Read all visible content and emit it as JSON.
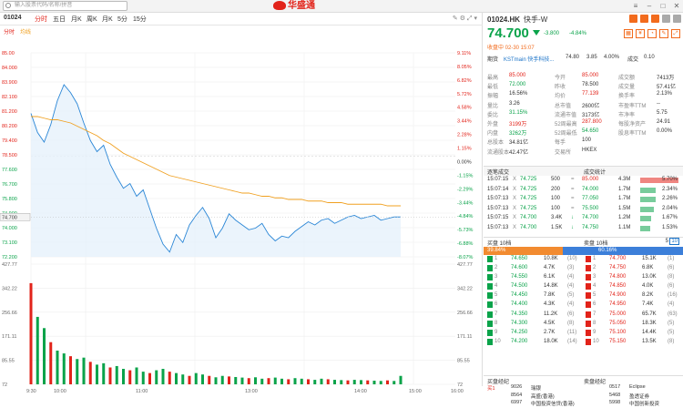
{
  "topbar": {
    "search_placeholder": "输入股票代码/名称/拼音",
    "logo": "华盛通"
  },
  "chart": {
    "code": "01024",
    "tabs": [
      "分时",
      "五日",
      "月K",
      "周K",
      "月K",
      "5分",
      "15分"
    ],
    "active_tab": "分时",
    "subtabs": [
      "分时",
      "均线"
    ],
    "price_ticks": [
      "85.00",
      "84.000",
      "83.900",
      "82.100",
      "81.200",
      "80.200",
      "79.400",
      "78.500",
      "77.600",
      "76.700",
      "75.800",
      "74.900",
      "74.000",
      "73.100",
      "72.200"
    ],
    "pct_ticks": [
      "9.11%",
      "8.05%",
      "6.82%",
      "5.72%",
      "4.58%",
      "3.44%",
      "2.28%",
      "1.15%",
      "0.00%",
      "-1.15%",
      "-2.29%",
      "-3.44%",
      "-4.84%",
      "-5.73%",
      "-6.88%",
      "-8.07%"
    ],
    "vol_ticks": [
      "427.77",
      "342.22",
      "256.66",
      "171.11",
      "85.55",
      "72"
    ],
    "vol_ticks_right": [
      "427.77",
      "342.22",
      "256.66",
      "171.11",
      "85.55",
      "72"
    ],
    "time_ticks": [
      "9:30",
      "10:00",
      "11:00",
      "13:00",
      "14:00",
      "15:00",
      "16:00"
    ]
  },
  "chart_data": {
    "type": "line",
    "title": "",
    "xlabel": "",
    "ylabel": "",
    "ylim": [
      72.2,
      85.0
    ],
    "series": [
      {
        "name": "",
        "values": [
          81.2,
          80.0,
          79.4,
          80.5,
          82.0,
          83.0,
          82.5,
          81.8,
          80.6,
          79.5,
          78.8,
          79.2,
          78.0,
          77.2,
          76.5,
          76.8,
          76.0,
          76.4,
          75.2,
          74.0,
          73.0,
          72.5,
          73.6,
          73.1,
          74.2,
          74.8,
          75.3,
          74.6,
          73.4,
          74.0,
          74.9,
          74.5,
          74.2,
          73.9,
          74.0,
          74.3,
          73.6,
          73.2,
          73.5,
          73.4,
          73.8,
          74.1,
          74.4,
          74.2,
          74.5,
          74.6,
          74.3,
          74.5,
          74.7,
          74.8,
          74.6,
          74.7,
          74.8,
          74.5,
          74.6,
          74.7,
          74.7
        ]
      },
      {
        "name": "",
        "values": [
          81.0,
          81.0,
          80.9,
          80.8,
          80.8,
          80.7,
          80.6,
          80.4,
          80.2,
          80.0,
          79.8,
          79.5,
          79.3,
          79.0,
          78.7,
          78.5,
          78.3,
          78.1,
          77.9,
          77.7,
          77.5,
          77.3,
          77.2,
          77.1,
          77.0,
          76.9,
          76.8,
          76.7,
          76.6,
          76.5,
          76.4,
          76.3,
          76.2,
          76.2,
          76.1,
          76.0,
          76.0,
          75.9,
          75.9,
          75.8,
          75.8,
          75.8,
          75.7,
          75.7,
          75.7,
          75.6,
          75.6,
          75.6,
          75.5,
          75.5,
          75.5,
          75.5,
          75.5,
          75.5,
          75.4,
          75.4,
          75.4
        ]
      }
    ],
    "volume": [
      360,
      240,
      200,
      150,
      120,
      110,
      100,
      90,
      95,
      80,
      70,
      75,
      60,
      65,
      55,
      50,
      60,
      45,
      40,
      50,
      55,
      45,
      40,
      35,
      30,
      40,
      35,
      30,
      25,
      30,
      28,
      26,
      24,
      22,
      25,
      20,
      22,
      24,
      20,
      18,
      22,
      20,
      18,
      16,
      20,
      18,
      16,
      15,
      14,
      16,
      15,
      14,
      13,
      12,
      14,
      12,
      30
    ]
  },
  "quote": {
    "code": "01024.HK",
    "name": "快手-W",
    "price": "74.700",
    "change": "-3.800",
    "change_pct": "-4.84%",
    "status": "收盘中 02-30 15:07",
    "pre_market": {
      "label": "期货",
      "source": "KSTmain 快手科技...",
      "value": "74.80",
      "chg": "3.85",
      "pct": "4.00%",
      "amt_label": "成交",
      "amt": "0.10"
    },
    "rows": [
      [
        [
          "最高",
          "85.000",
          "red"
        ],
        [
          "今开",
          "85.000",
          "red"
        ],
        [
          "成交额",
          "7413万",
          "blk"
        ]
      ],
      [
        [
          "最低",
          "72.000",
          "grn"
        ],
        [
          "昨收",
          "78.500",
          "blk"
        ],
        [
          "成交量",
          "57.41亿",
          "blk"
        ]
      ],
      [
        [
          "振幅",
          "16.56%",
          "blk"
        ],
        [
          "均价",
          "77.139",
          "red"
        ],
        [
          "换手率",
          "2.13%",
          "blk"
        ]
      ],
      [
        [
          "量比",
          "3.26",
          "blk"
        ],
        [
          "总市值",
          "2600亿",
          "blk"
        ],
        [
          "市盈率TTM",
          "--",
          "blk"
        ]
      ],
      [
        [
          "委比",
          "31.15%",
          "grn"
        ],
        [
          "流通市值",
          "3173亿",
          "blk"
        ],
        [
          "市净率",
          "5.75",
          "blk"
        ]
      ],
      [
        [
          "外盘",
          "3199万",
          "red"
        ],
        [
          "52周最高",
          "287.800",
          "red"
        ],
        [
          "每股净资产",
          "24.91",
          "blk"
        ]
      ],
      [
        [
          "内盘",
          "3262万",
          "grn"
        ],
        [
          "52周最低",
          "54.650",
          "grn"
        ],
        [
          "股息率TTM",
          "0.00%",
          "blk"
        ]
      ],
      [
        [
          "总股本",
          "34.81亿",
          "blk"
        ],
        [
          "每手",
          "100",
          "blk"
        ],
        [
          "",
          "",
          ""
        ]
      ],
      [
        [
          "流通股本",
          "42.47亿",
          "blk"
        ],
        [
          "交易所",
          "HKEX",
          "blk"
        ],
        [
          "",
          "",
          ""
        ]
      ]
    ]
  },
  "ticks": {
    "header_left": "逐笔成交",
    "header_right": "成交统计",
    "rows": [
      [
        "15:07:15",
        "X",
        "74.725",
        "500",
        "="
      ],
      [
        "15:07:14",
        "X",
        "74.725",
        "200",
        "="
      ],
      [
        "15:07:13",
        "X",
        "74.725",
        "100",
        "="
      ],
      [
        "15:07:13",
        "X",
        "74.725",
        "100",
        "="
      ],
      [
        "15:07:15",
        "X",
        "74.700",
        "3.4K",
        "↓"
      ],
      [
        "15:07:13",
        "X",
        "74.700",
        "1.5K",
        "↓"
      ]
    ],
    "stats": [
      [
        "85.000",
        "4.3M",
        "5.70%"
      ],
      [
        "74.000",
        "1.7M",
        "2.34%"
      ],
      [
        "77.050",
        "1.7M",
        "2.26%"
      ],
      [
        "75.500",
        "1.5M",
        "2.04%"
      ],
      [
        "74.700",
        "1.2M",
        "1.67%"
      ],
      [
        "74.750",
        "1.1M",
        "1.53%"
      ]
    ]
  },
  "depth": {
    "bid_label": "买盘 10档",
    "ask_label": "卖盘 10档",
    "bid_ratio": "39.84%",
    "ask_ratio": "60.16%",
    "rows": [
      [
        "1",
        "74.650",
        "10.8K",
        "(10)",
        "1",
        "74.700",
        "15.1K",
        "(1)"
      ],
      [
        "2",
        "74.600",
        "4.7K",
        "(3)",
        "2",
        "74.750",
        "6.8K",
        "(6)"
      ],
      [
        "3",
        "74.550",
        "6.1K",
        "(4)",
        "3",
        "74.800",
        "13.0K",
        "(8)"
      ],
      [
        "4",
        "74.500",
        "14.8K",
        "(4)",
        "4",
        "74.850",
        "4.0K",
        "(6)"
      ],
      [
        "5",
        "74.450",
        "7.8K",
        "(5)",
        "5",
        "74.900",
        "8.2K",
        "(16)"
      ],
      [
        "6",
        "74.400",
        "4.3K",
        "(4)",
        "6",
        "74.950",
        "7.4K",
        "(4)"
      ],
      [
        "7",
        "74.350",
        "11.2K",
        "(6)",
        "7",
        "75.000",
        "65.7K",
        "(63)"
      ],
      [
        "8",
        "74.300",
        "4.5K",
        "(8)",
        "8",
        "75.050",
        "18.3K",
        "(5)"
      ],
      [
        "9",
        "74.250",
        "2.7K",
        "(11)",
        "9",
        "75.100",
        "14.4K",
        "(5)"
      ],
      [
        "10",
        "74.200",
        "18.0K",
        "(14)",
        "10",
        "75.150",
        "13.5K",
        "(8)"
      ]
    ]
  },
  "broker": {
    "bid_title": "买盘经纪",
    "ask_title": "卖盘经纪",
    "rows": [
      [
        "买1",
        "9026",
        "瑞银",
        "0517",
        "Eclipse"
      ],
      [
        "",
        "8564",
        "高盛(香港)",
        "5468",
        "盈透证券"
      ],
      [
        "",
        "6997",
        "中国投资信贷(香港)",
        "5998",
        "中国创新投资"
      ]
    ]
  }
}
